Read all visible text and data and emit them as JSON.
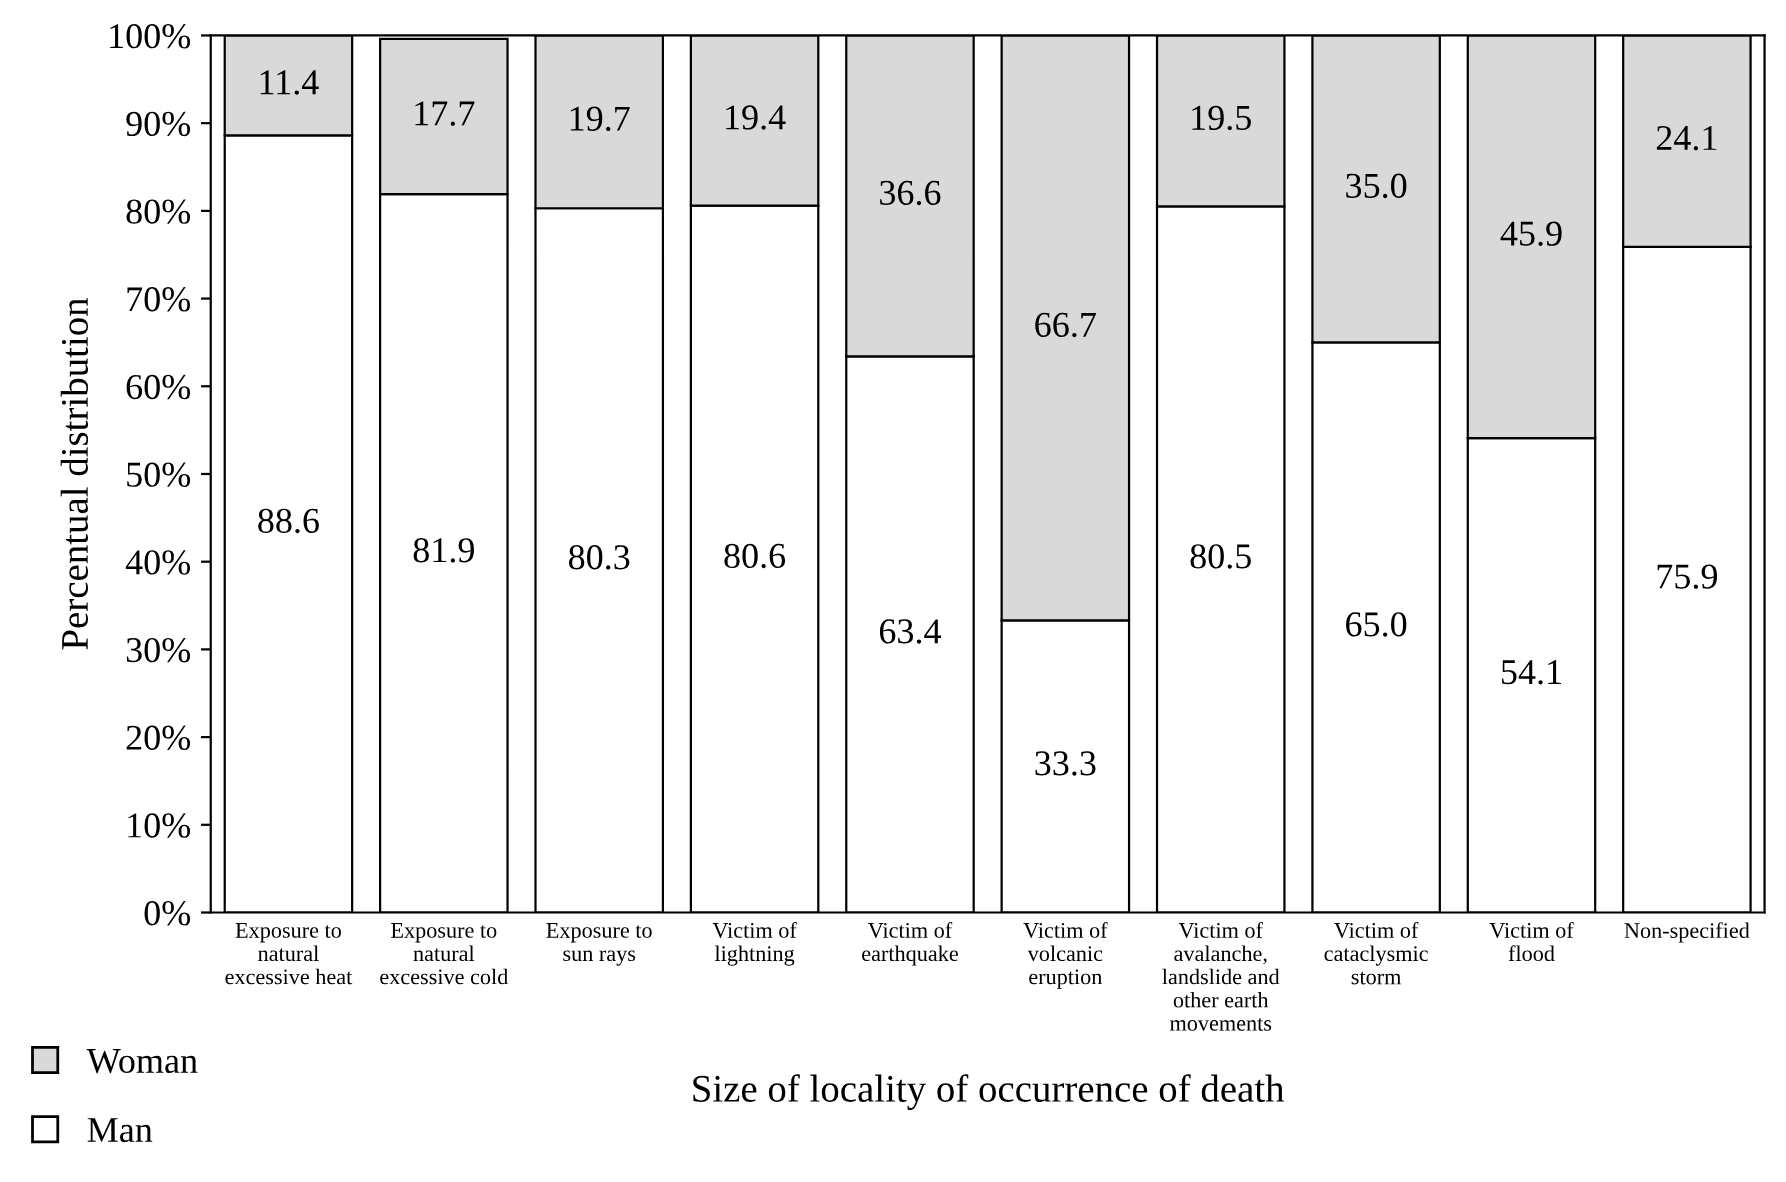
{
  "chart_data": {
    "type": "bar",
    "stacked": true,
    "xlabel": "Size of locality of occurrence of death",
    "ylabel": "Percentual distribution",
    "categories": [
      "Exposure to\nnatural\nexcessive heat",
      "Exposure to\nnatural\nexcessive cold",
      "Exposure to\nsun rays",
      "Victim of\nlightning",
      "Victim of\nearthquake",
      "Victim of\nvolcanic\neruption",
      "Victim of\navalanche,\nlandslide and\nother earth\nmovements",
      "Victim of\ncataclysmic\nstorm",
      "Victim of\nflood",
      "Non-specified"
    ],
    "series": [
      {
        "name": "Man",
        "color": "#ffffff",
        "values": [
          88.6,
          81.9,
          80.3,
          80.6,
          63.4,
          33.3,
          80.5,
          65.0,
          54.1,
          75.9
        ],
        "value_labels": [
          "88.6",
          "81.9",
          "80.3",
          "80.6",
          "63.4",
          "33.3",
          "80.5",
          "65.0",
          "54.1",
          "75.9"
        ]
      },
      {
        "name": "Woman",
        "color": "#d9d9d9",
        "values": [
          11.4,
          17.7,
          19.7,
          19.4,
          36.6,
          66.7,
          19.5,
          35.0,
          45.9,
          24.1
        ],
        "value_labels": [
          "11.4",
          "17.7",
          "19.7",
          "19.4",
          "36.6",
          "66.7",
          "19.5",
          "35.0",
          "45.9",
          "24.1"
        ]
      }
    ],
    "ylim": [
      0,
      100
    ],
    "yticks": [
      {
        "value": 0,
        "label": "0%"
      },
      {
        "value": 10,
        "label": "10%"
      },
      {
        "value": 20,
        "label": "20%"
      },
      {
        "value": 30,
        "label": "30%"
      },
      {
        "value": 40,
        "label": "40%"
      },
      {
        "value": 50,
        "label": "50%"
      },
      {
        "value": 60,
        "label": "60%"
      },
      {
        "value": 70,
        "label": "70%"
      },
      {
        "value": 80,
        "label": "80%"
      },
      {
        "value": 90,
        "label": "90%"
      },
      {
        "value": 100,
        "label": "100%"
      }
    ],
    "legend": "bottom left",
    "grid": false
  }
}
